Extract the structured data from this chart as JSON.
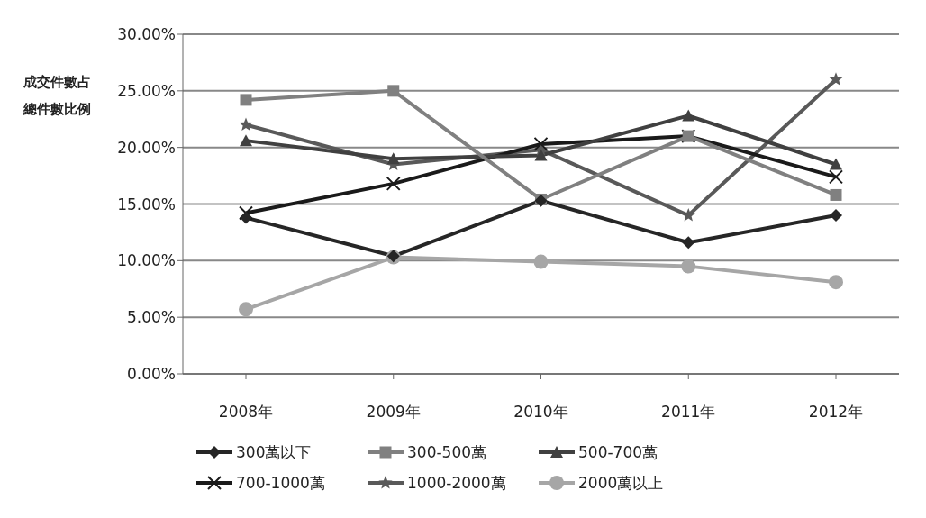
{
  "chart_data": {
    "type": "line",
    "ylabel": "成交件數占總件數比例",
    "categories": [
      "2008年",
      "2009年",
      "2010年",
      "2011年",
      "2012年"
    ],
    "series": [
      {
        "name": "300萬以下",
        "color": "#262626",
        "marker": "diamond",
        "values": [
          13.8,
          10.4,
          15.3,
          11.6,
          14.0
        ]
      },
      {
        "name": "300-500萬",
        "color": "#808080",
        "marker": "square",
        "values": [
          24.2,
          25.0,
          15.4,
          21.0,
          15.8
        ]
      },
      {
        "name": "500-700萬",
        "color": "#404040",
        "marker": "triangle",
        "values": [
          20.6,
          19.0,
          19.3,
          22.8,
          18.5
        ]
      },
      {
        "name": "700-1000萬",
        "color": "#1a1a1a",
        "marker": "cross",
        "values": [
          14.2,
          16.8,
          20.3,
          21.0,
          17.4
        ]
      },
      {
        "name": "1000-2000萬",
        "color": "#595959",
        "marker": "star",
        "values": [
          22.0,
          18.5,
          19.8,
          14.0,
          26.0
        ]
      },
      {
        "name": "2000萬以上",
        "color": "#a6a6a6",
        "marker": "circle",
        "values": [
          5.7,
          10.3,
          9.9,
          9.5,
          8.1
        ]
      }
    ],
    "ylim": [
      0,
      30
    ],
    "yticks": [
      {
        "value": 0,
        "label": "0.00%"
      },
      {
        "value": 5,
        "label": "5.00%"
      },
      {
        "value": 10,
        "label": "10.00%"
      },
      {
        "value": 15,
        "label": "15.00%"
      },
      {
        "value": 20,
        "label": "20.00%"
      },
      {
        "value": 25,
        "label": "25.00%"
      },
      {
        "value": 30,
        "label": "30.00%"
      }
    ],
    "grid": "y",
    "legend": "bottom",
    "line_style": "solid"
  }
}
